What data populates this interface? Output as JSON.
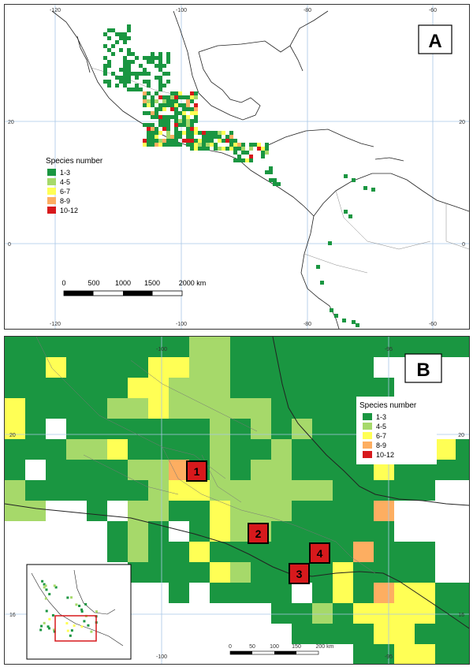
{
  "colors": {
    "c1": "#1a9641",
    "c2": "#a6d96a",
    "c3": "#ffff55",
    "c4": "#fdae61",
    "c5": "#d7191c",
    "grid": "#a9c7e6",
    "coast": "#222222",
    "border": "#777777"
  },
  "panelA": {
    "letter": "A",
    "ticks_top": [
      "-120",
      "-100",
      "-80",
      "-60"
    ],
    "ticks_bottom": [
      "-120",
      "-100",
      "-80",
      "-60"
    ],
    "ticks_left": [
      "20",
      "0"
    ],
    "ticks_right": [
      "20",
      "0"
    ],
    "legend": {
      "title": "Species number",
      "items": [
        {
          "label": "1-3",
          "color": "#1a9641"
        },
        {
          "label": "4-5",
          "color": "#a6d96a"
        },
        {
          "label": "6-7",
          "color": "#ffff55"
        },
        {
          "label": "8-9",
          "color": "#fdae61"
        },
        {
          "label": "10-12",
          "color": "#d7191c"
        }
      ]
    },
    "scale": {
      "labels": [
        "0",
        "500",
        "1000",
        "1500",
        "2000 km"
      ]
    }
  },
  "panelB": {
    "letter": "B",
    "ticks_top": [
      "-100",
      "-95"
    ],
    "ticks_bottom": [
      "-100",
      "-95"
    ],
    "ticks_left": [
      "20",
      "16"
    ],
    "ticks_right": [
      "20",
      "16"
    ],
    "legend": {
      "title": "Species number",
      "items": [
        {
          "label": "1-3",
          "color": "#1a9641"
        },
        {
          "label": "4-5",
          "color": "#a6d96a"
        },
        {
          "label": "6-7",
          "color": "#ffff55"
        },
        {
          "label": "8-9",
          "color": "#fdae61"
        },
        {
          "label": "10-12",
          "color": "#d7191c"
        }
      ]
    },
    "scale": {
      "labels": [
        "0",
        "50",
        "100",
        "150",
        "200 km"
      ]
    },
    "hotspots": [
      {
        "label": "1"
      },
      {
        "label": "2"
      },
      {
        "label": "3"
      },
      {
        "label": "4"
      }
    ]
  }
}
